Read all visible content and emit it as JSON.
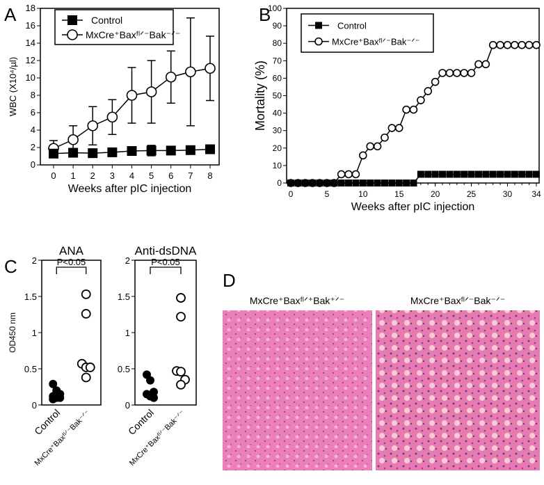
{
  "panels": {
    "a": "A",
    "b": "B",
    "c": "C",
    "d": "D"
  },
  "chart_data": [
    {
      "id": "A",
      "type": "line",
      "xlabel": "Weeks after pIC injection",
      "ylabel": "WBC (X10⁴/µl)",
      "xlim": [
        0,
        8
      ],
      "ylim": [
        0,
        18
      ],
      "xticks": [
        0,
        1,
        2,
        3,
        4,
        5,
        6,
        7,
        8
      ],
      "yticks": [
        0,
        2,
        4,
        6,
        8,
        10,
        12,
        14,
        16,
        18
      ],
      "legend": "top-left",
      "series": [
        {
          "name": "Control",
          "marker": "filled-square",
          "x": [
            0,
            1,
            2,
            3,
            4,
            5,
            6,
            7,
            8
          ],
          "y": [
            1.3,
            1.4,
            1.35,
            1.45,
            1.6,
            1.65,
            1.65,
            1.7,
            1.8
          ],
          "err": [
            0.2,
            0.2,
            0.15,
            0.15,
            0.2,
            0.6,
            0.2,
            0.2,
            0.2
          ]
        },
        {
          "name": "MxCre⁺Baxᶠˡᐟ⁻Bak⁻ᐟ⁻",
          "marker": "open-circle",
          "x": [
            0,
            1,
            2,
            3,
            4,
            5,
            6,
            7,
            8
          ],
          "y": [
            1.9,
            2.9,
            4.5,
            5.5,
            8.0,
            8.4,
            10.1,
            10.7,
            11.1
          ],
          "err": [
            0.9,
            1.6,
            2.2,
            2.0,
            3.2,
            3.6,
            3.0,
            6.2,
            3.7
          ]
        }
      ]
    },
    {
      "id": "B",
      "type": "line",
      "xlabel": "Weeks after pIC injection",
      "ylabel": "Mortality (%)",
      "xlim": [
        0,
        34
      ],
      "ylim": [
        0,
        100
      ],
      "xticks": [
        0,
        5,
        10,
        15,
        20,
        25,
        30,
        34
      ],
      "yticks": [
        0,
        10,
        20,
        30,
        40,
        50,
        60,
        70,
        80,
        90,
        100
      ],
      "legend": "top-left",
      "series": [
        {
          "name": "Control",
          "marker": "filled-square",
          "x": [
            0,
            1,
            2,
            3,
            4,
            5,
            6,
            7,
            8,
            9,
            10,
            11,
            12,
            13,
            14,
            15,
            16,
            17,
            18,
            19,
            20,
            21,
            22,
            23,
            24,
            25,
            26,
            27,
            28,
            29,
            30,
            31,
            32,
            33,
            34
          ],
          "y": [
            0,
            0,
            0,
            0,
            0,
            0,
            0,
            0,
            0,
            0,
            0,
            0,
            0,
            0,
            0,
            0,
            0,
            0,
            5,
            5,
            5,
            5,
            5,
            5,
            5,
            5,
            5,
            5,
            5,
            5,
            5,
            5,
            5,
            5,
            5
          ]
        },
        {
          "name": "MxCre⁺Baxᶠˡᐟ⁻Bak⁻ᐟ⁻",
          "marker": "open-circle",
          "x": [
            0,
            1,
            2,
            3,
            4,
            5,
            6,
            7,
            8,
            9,
            10,
            11,
            12,
            13,
            14,
            15,
            16,
            17,
            18,
            19,
            20,
            21,
            22,
            23,
            24,
            25,
            26,
            27,
            28,
            29,
            30,
            31,
            32,
            33,
            34
          ],
          "y": [
            0,
            0,
            0,
            0,
            0,
            0,
            0,
            5,
            5,
            5,
            15.8,
            21,
            21,
            26,
            31.5,
            31.5,
            42,
            42,
            47.4,
            52.6,
            57.9,
            63,
            63,
            63,
            63,
            63,
            68,
            68,
            79,
            79,
            79,
            79,
            79,
            79,
            79
          ]
        }
      ]
    },
    {
      "id": "C1",
      "type": "scatter",
      "title": "ANA",
      "ylabel": "OD450 nm",
      "ylim": [
        0,
        2
      ],
      "yticks": [
        0,
        0.5,
        1,
        1.5,
        2
      ],
      "ytick_labels": [
        "0",
        "0.5",
        "1",
        "1.5",
        "2"
      ],
      "categories": [
        "Control",
        "MxCre⁺Baxᶠˡᐟ⁻Bak⁻ᐟ⁻"
      ],
      "annotation": "P<0.05",
      "series": [
        {
          "name": "Control",
          "values": [
            0.29,
            0.2,
            0.15,
            0.12,
            0.1,
            0.1,
            0.08
          ]
        },
        {
          "name": "MxCre⁺Baxᶠˡᐟ⁻Bak⁻ᐟ⁻",
          "values": [
            1.53,
            1.26,
            0.57,
            0.52,
            0.52,
            0.38
          ]
        }
      ]
    },
    {
      "id": "C2",
      "type": "scatter",
      "title": "Anti-dsDNA",
      "ylabel": "",
      "ylim": [
        0,
        2
      ],
      "yticks": [
        0,
        0.5,
        1,
        1.5,
        2
      ],
      "ytick_labels": [
        "0",
        "0.5",
        "1",
        "1.5",
        "2"
      ],
      "categories": [
        "Control",
        "MxCre⁺Baxᶠˡᐟ⁻Bak⁻ᐟ⁻"
      ],
      "annotation": "P<0.05",
      "series": [
        {
          "name": "Control",
          "values": [
            0.42,
            0.34,
            0.18,
            0.15,
            0.12,
            0.1
          ]
        },
        {
          "name": "MxCre⁺Baxᶠˡᐟ⁻Bak⁻ᐟ⁻",
          "values": [
            1.48,
            1.22,
            0.47,
            0.46,
            0.35,
            0.28
          ]
        }
      ]
    }
  ],
  "histology": {
    "left_label": "MxCre⁺Baxᶠˡᐟ⁺Bak⁺ᐟ⁻",
    "right_label": "MxCre⁺Baxᶠˡᐟ⁻Bak⁻ᐟ⁻",
    "stain_color": "#e46aa8"
  }
}
